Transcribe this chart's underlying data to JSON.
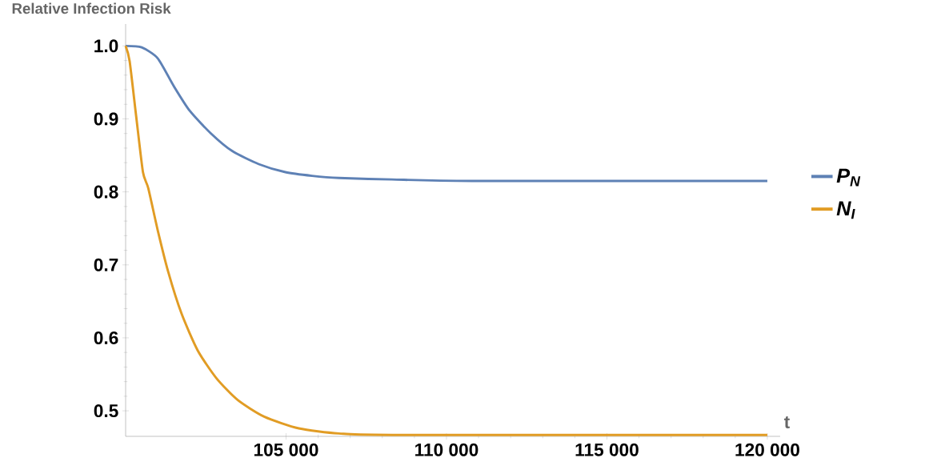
{
  "chart_data": {
    "type": "line",
    "title": "Relative Infection Risk",
    "xlabel": "t",
    "xlim": [
      100000,
      120400
    ],
    "ylim": [
      0.465,
      1.03
    ],
    "xticks": [
      {
        "value": 105000,
        "label": "105 000"
      },
      {
        "value": 110000,
        "label": "110 000"
      },
      {
        "value": 115000,
        "label": "115 000"
      },
      {
        "value": 120000,
        "label": "120 000"
      }
    ],
    "yticks": [
      0.5,
      0.6,
      0.7,
      0.8,
      0.9,
      {
        "value": 1.0,
        "label": "1.0"
      }
    ],
    "grid": false,
    "legend": "right",
    "marker": "none",
    "line_style": "solid",
    "series": [
      {
        "name": "P$_{N}$",
        "color": "#5e81b5",
        "x": [
          100000,
          100500,
          101000,
          101500,
          102000,
          102660,
          103320,
          104150,
          104980,
          105810,
          106650,
          108300,
          110800,
          120000
        ],
        "values": [
          1.0,
          0.998,
          0.983,
          0.945,
          0.911,
          0.88,
          0.856,
          0.838,
          0.827,
          0.822,
          0.819,
          0.817,
          0.815,
          0.815
        ]
      },
      {
        "name": "N$_{I}$",
        "color": "#e19c24",
        "x": [
          100000,
          100125,
          100330,
          100540,
          100706,
          100997,
          101330,
          101744,
          102243,
          102824,
          103488,
          104319,
          105399,
          106645,
          108306,
          120000
        ],
        "values": [
          1.0,
          0.979,
          0.903,
          0.827,
          0.805,
          0.748,
          0.69,
          0.633,
          0.583,
          0.545,
          0.515,
          0.492,
          0.476,
          0.469,
          0.467,
          0.467
        ]
      }
    ]
  }
}
